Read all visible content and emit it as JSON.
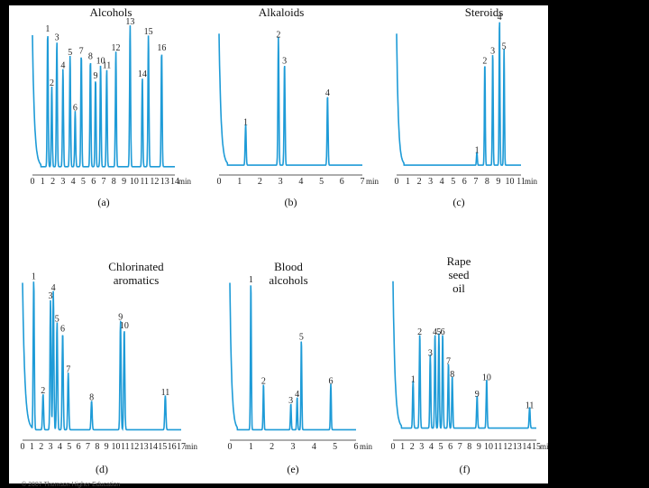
{
  "copyright": "© 2007 Thomson Higher Education",
  "chart_data": [
    {
      "type": "line",
      "id": "a",
      "sub": "(a)",
      "title": [
        "Alcohols"
      ],
      "xlabel": "min",
      "xmin": 0,
      "xmax": 14,
      "ticks": [
        0,
        1,
        2,
        3,
        4,
        5,
        6,
        7,
        8,
        9,
        10,
        11,
        12,
        13,
        14
      ],
      "base": 0.02,
      "peaks": [
        {
          "label": "1",
          "x": 1.5,
          "h": 0.92
        },
        {
          "label": "2",
          "x": 1.9,
          "h": 0.55
        },
        {
          "label": "3",
          "x": 2.4,
          "h": 0.86
        },
        {
          "label": "4",
          "x": 3.0,
          "h": 0.67
        },
        {
          "label": "5",
          "x": 3.7,
          "h": 0.76
        },
        {
          "label": "6",
          "x": 4.2,
          "h": 0.38
        },
        {
          "label": "7",
          "x": 4.8,
          "h": 0.77
        },
        {
          "label": "8",
          "x": 5.7,
          "h": 0.73
        },
        {
          "label": "9",
          "x": 6.2,
          "h": 0.6
        },
        {
          "label": "10",
          "x": 6.7,
          "h": 0.7
        },
        {
          "label": "11",
          "x": 7.3,
          "h": 0.67
        },
        {
          "label": "12",
          "x": 8.2,
          "h": 0.79
        },
        {
          "label": "13",
          "x": 9.6,
          "h": 0.97
        },
        {
          "label": "14",
          "x": 10.8,
          "h": 0.61
        },
        {
          "label": "15",
          "x": 11.4,
          "h": 0.9
        },
        {
          "label": "16",
          "x": 12.7,
          "h": 0.79
        }
      ]
    },
    {
      "type": "line",
      "id": "b",
      "sub": "(b)",
      "title": [
        "Alkaloids"
      ],
      "xlabel": "min",
      "xmin": 0,
      "xmax": 7,
      "ticks": [
        0,
        1,
        2,
        3,
        4,
        5,
        6,
        7
      ],
      "base": 0.03,
      "peaks": [
        {
          "label": "1",
          "x": 1.3,
          "h": 0.28
        },
        {
          "label": "2",
          "x": 2.9,
          "h": 0.88
        },
        {
          "label": "3",
          "x": 3.2,
          "h": 0.7
        },
        {
          "label": "4",
          "x": 5.3,
          "h": 0.48
        }
      ]
    },
    {
      "type": "line",
      "id": "c",
      "sub": "(c)",
      "title": [
        "Steroids"
      ],
      "xlabel": "min",
      "xmin": 0,
      "xmax": 11,
      "ticks": [
        0,
        1,
        2,
        3,
        4,
        5,
        6,
        7,
        8,
        9,
        10,
        11
      ],
      "base": 0.03,
      "peaks": [
        {
          "label": "1",
          "x": 7.1,
          "h": 0.09
        },
        {
          "label": "2",
          "x": 7.8,
          "h": 0.7
        },
        {
          "label": "3",
          "x": 8.5,
          "h": 0.77
        },
        {
          "label": "4",
          "x": 9.1,
          "h": 1.0
        },
        {
          "label": "5",
          "x": 9.5,
          "h": 0.8
        }
      ]
    },
    {
      "type": "line",
      "id": "d",
      "sub": "(d)",
      "title": [
        "Chlorinated",
        "aromatics"
      ],
      "xlabel": "min",
      "xmin": 0,
      "xmax": 17,
      "ticks": [
        0,
        1,
        2,
        3,
        4,
        5,
        6,
        7,
        8,
        9,
        10,
        11,
        12,
        13,
        14,
        15,
        16,
        17
      ],
      "base": 0.02,
      "peaks": [
        {
          "label": "1",
          "x": 1.2,
          "h": 0.92
        },
        {
          "label": "2",
          "x": 2.2,
          "h": 0.22
        },
        {
          "label": "3",
          "x": 3.0,
          "h": 0.8
        },
        {
          "label": "4",
          "x": 3.3,
          "h": 0.85
        },
        {
          "label": "5",
          "x": 3.7,
          "h": 0.66
        },
        {
          "label": "6",
          "x": 4.3,
          "h": 0.6
        },
        {
          "label": "7",
          "x": 4.9,
          "h": 0.35
        },
        {
          "label": "8",
          "x": 7.4,
          "h": 0.18
        },
        {
          "label": "9",
          "x": 10.5,
          "h": 0.67
        },
        {
          "label": "10",
          "x": 10.9,
          "h": 0.62
        },
        {
          "label": "11",
          "x": 15.3,
          "h": 0.21
        }
      ]
    },
    {
      "type": "line",
      "id": "e",
      "sub": "(e)",
      "title": [
        "Blood",
        "alcohols"
      ],
      "xlabel": "min",
      "xmin": 0,
      "xmax": 6,
      "ticks": [
        0,
        1,
        2,
        3,
        4,
        5,
        6
      ],
      "base": 0.02,
      "peaks": [
        {
          "label": "1",
          "x": 1.0,
          "h": 0.9
        },
        {
          "label": "2",
          "x": 1.6,
          "h": 0.28
        },
        {
          "label": "3",
          "x": 2.9,
          "h": 0.16
        },
        {
          "label": "4",
          "x": 3.2,
          "h": 0.2
        },
        {
          "label": "5",
          "x": 3.4,
          "h": 0.55
        },
        {
          "label": "6",
          "x": 4.8,
          "h": 0.28
        }
      ]
    },
    {
      "type": "line",
      "id": "f",
      "sub": "(f)",
      "title": [
        "Rape",
        "seed",
        "oil"
      ],
      "xlabel": "min",
      "xmin": 0,
      "xmax": 15,
      "ticks": [
        0,
        1,
        2,
        3,
        4,
        5,
        6,
        7,
        8,
        9,
        10,
        11,
        12,
        13,
        14,
        15
      ],
      "base": 0.03,
      "peaks": [
        {
          "label": "1",
          "x": 2.1,
          "h": 0.29
        },
        {
          "label": "2",
          "x": 2.8,
          "h": 0.58
        },
        {
          "label": "3",
          "x": 3.9,
          "h": 0.45
        },
        {
          "label": "4",
          "x": 4.4,
          "h": 0.58
        },
        {
          "label": "5",
          "x": 4.8,
          "h": 0.58
        },
        {
          "label": "6",
          "x": 5.2,
          "h": 0.58
        },
        {
          "label": "7",
          "x": 5.8,
          "h": 0.4
        },
        {
          "label": "8",
          "x": 6.2,
          "h": 0.32
        },
        {
          "label": "9",
          "x": 8.8,
          "h": 0.2
        },
        {
          "label": "10",
          "x": 9.8,
          "h": 0.3
        },
        {
          "label": "11",
          "x": 14.3,
          "h": 0.13
        }
      ]
    }
  ]
}
